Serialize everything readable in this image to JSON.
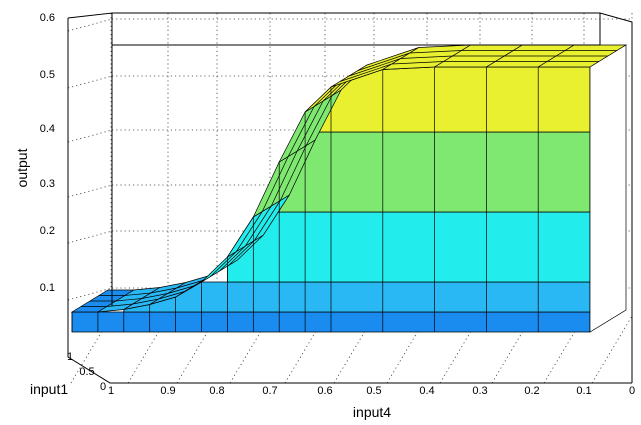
{
  "chart_data": {
    "type": "surface",
    "title": "",
    "zlabel": "output",
    "xlabel": "input4",
    "ylabel": "input1",
    "z_ticks": [
      "0.1",
      "0.2",
      "0.3",
      "0.4",
      "0.5",
      "0.6"
    ],
    "x_ticks": [
      "1",
      "0.9",
      "0.8",
      "0.7",
      "0.6",
      "0.5",
      "0.4",
      "0.3",
      "0.2",
      "0.1",
      "0"
    ],
    "y_ticks": [
      "1",
      "0.5",
      "0"
    ],
    "zlim": [
      0,
      0.6
    ],
    "input4": [
      1.0,
      0.95,
      0.9,
      0.85,
      0.8,
      0.75,
      0.7,
      0.65,
      0.6,
      0.55,
      0.5,
      0.4,
      0.3,
      0.2,
      0.1,
      0.0
    ],
    "output": [
      0.06,
      0.06,
      0.065,
      0.075,
      0.09,
      0.12,
      0.17,
      0.25,
      0.36,
      0.46,
      0.51,
      0.545,
      0.55,
      0.55,
      0.55,
      0.55
    ],
    "colormap_bands": [
      {
        "from": 0.0,
        "to": 0.02,
        "color": "#1060d0"
      },
      {
        "from": 0.02,
        "to": 0.06,
        "color": "#1a8cf0"
      },
      {
        "from": 0.06,
        "to": 0.12,
        "color": "#2ab8f4"
      },
      {
        "from": 0.12,
        "to": 0.26,
        "color": "#22ecec"
      },
      {
        "from": 0.26,
        "to": 0.42,
        "color": "#7ee870"
      },
      {
        "from": 0.42,
        "to": 0.6,
        "color": "#e8f030"
      }
    ],
    "grid": true
  }
}
